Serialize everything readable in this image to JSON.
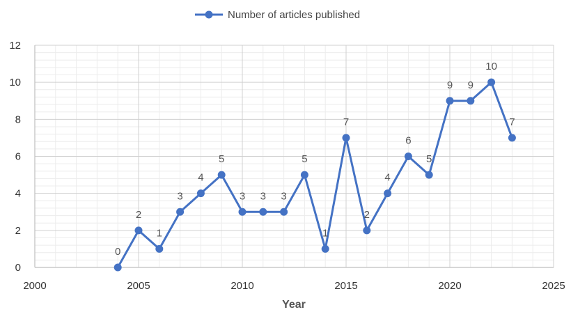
{
  "chart_data": {
    "type": "scatter",
    "xlabel": "Year",
    "ylabel": "",
    "xlim": [
      2000,
      2025
    ],
    "ylim": [
      0,
      12
    ],
    "x_ticks": [
      2000,
      2005,
      2010,
      2015,
      2020,
      2025
    ],
    "y_ticks": [
      0,
      2,
      4,
      6,
      8,
      10,
      12
    ],
    "grid": "major and minor",
    "legend": "top-center",
    "series": [
      {
        "name": "Number of articles published",
        "color": "#4472C4",
        "x": [
          2004,
          2005,
          2006,
          2007,
          2008,
          2009,
          2010,
          2011,
          2012,
          2013,
          2014,
          2015,
          2016,
          2017,
          2018,
          2019,
          2020,
          2021,
          2022,
          2023
        ],
        "y": [
          0,
          2,
          1,
          3,
          4,
          5,
          3,
          3,
          3,
          5,
          1,
          7,
          2,
          4,
          6,
          5,
          9,
          9,
          10,
          7
        ]
      }
    ]
  }
}
